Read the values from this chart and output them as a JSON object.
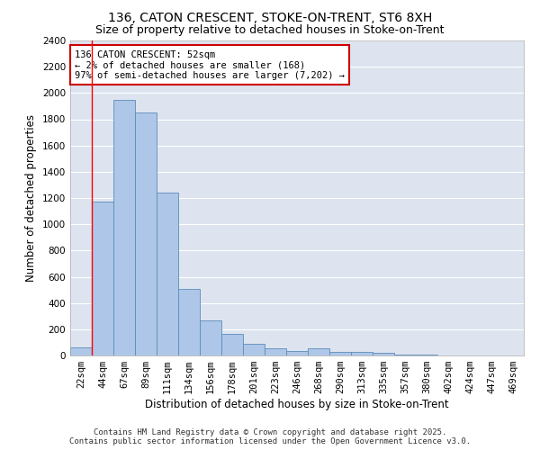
{
  "title": "136, CATON CRESCENT, STOKE-ON-TRENT, ST6 8XH",
  "subtitle": "Size of property relative to detached houses in Stoke-on-Trent",
  "xlabel": "Distribution of detached houses by size in Stoke-on-Trent",
  "ylabel": "Number of detached properties",
  "categories": [
    "22sqm",
    "44sqm",
    "67sqm",
    "89sqm",
    "111sqm",
    "134sqm",
    "156sqm",
    "178sqm",
    "201sqm",
    "223sqm",
    "246sqm",
    "268sqm",
    "290sqm",
    "313sqm",
    "335sqm",
    "357sqm",
    "380sqm",
    "402sqm",
    "424sqm",
    "447sqm",
    "469sqm"
  ],
  "values": [
    60,
    1170,
    1950,
    1850,
    1240,
    510,
    270,
    165,
    90,
    55,
    35,
    55,
    30,
    30,
    20,
    10,
    5,
    3,
    2,
    1,
    2
  ],
  "bar_color": "#aec6e8",
  "bar_edge_color": "#5b8db8",
  "red_line_index": 1,
  "annotation_line1": "136 CATON CRESCENT: 52sqm",
  "annotation_line2": "← 2% of detached houses are smaller (168)",
  "annotation_line3": "97% of semi-detached houses are larger (7,202) →",
  "annotation_box_color": "#ffffff",
  "annotation_box_edge_color": "#cc0000",
  "ylim": [
    0,
    2400
  ],
  "yticks": [
    0,
    200,
    400,
    600,
    800,
    1000,
    1200,
    1400,
    1600,
    1800,
    2000,
    2200,
    2400
  ],
  "background_color": "#dde4f0",
  "grid_color": "#ffffff",
  "footer_line1": "Contains HM Land Registry data © Crown copyright and database right 2025.",
  "footer_line2": "Contains public sector information licensed under the Open Government Licence v3.0.",
  "title_fontsize": 10,
  "subtitle_fontsize": 9,
  "axis_label_fontsize": 8.5,
  "tick_fontsize": 7.5,
  "annotation_fontsize": 7.5,
  "footer_fontsize": 6.5,
  "fig_bg_color": "#ffffff"
}
